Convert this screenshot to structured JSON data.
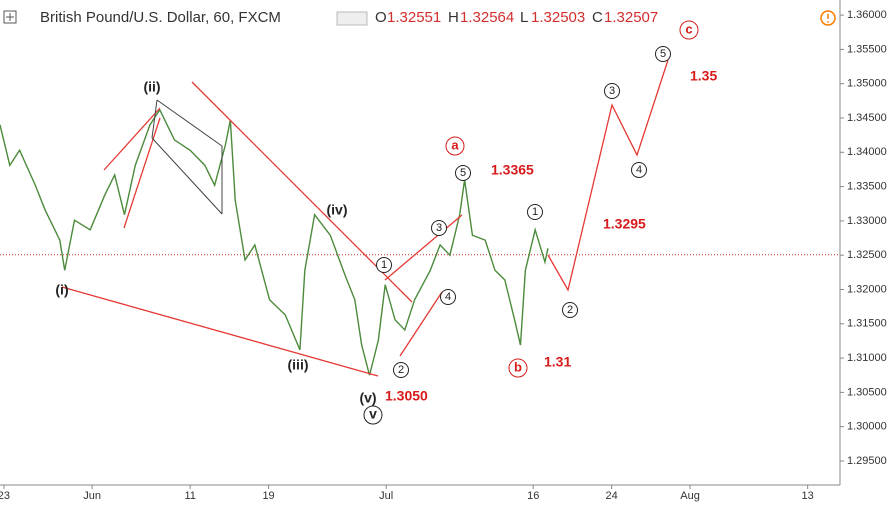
{
  "header": {
    "symbol": "British Pound/U.S. Dollar, 60, FXCM",
    "o_label": "O",
    "open": "1.32551",
    "h_label": "H",
    "high": "1.32564",
    "l_label": "L",
    "low": "1.32503",
    "c_label": "C",
    "close": "1.32507"
  },
  "chart_data": {
    "type": "line",
    "color": "#4b8b3b",
    "price_line_color": "#d32f2f",
    "current_price": 1.32507,
    "x": [
      22.6,
      23.6,
      24.6,
      26.2,
      27.2,
      28.7,
      29.2,
      30.2,
      31.8,
      33.3,
      34.3,
      35.3,
      36.4,
      37.9,
      38.9,
      40.4,
      42.0,
      43.5,
      44.5,
      45.6,
      46.1,
      46.6,
      47.6,
      48.6,
      50.1,
      51.7,
      53.2,
      53.7,
      54.7,
      56.3,
      57.8,
      58.8,
      59.5,
      60.3,
      61.2,
      61.9,
      62.9,
      63.9,
      64.9,
      66.5,
      67.5,
      68.5,
      69.5,
      70.0,
      70.8,
      72.1,
      73.1,
      74.1,
      75.1,
      75.7,
      76.2,
      77.2,
      78.2,
      78.5
    ],
    "values": [
      1.344,
      1.3381,
      1.3403,
      1.3352,
      1.3316,
      1.3272,
      1.3228,
      1.3301,
      1.3287,
      1.3338,
      1.3367,
      1.3309,
      1.3381,
      1.344,
      1.3462,
      1.3418,
      1.3403,
      1.3381,
      1.3352,
      1.3411,
      1.3447,
      1.333,
      1.3243,
      1.3265,
      1.3185,
      1.3163,
      1.3112,
      1.3228,
      1.3309,
      1.3279,
      1.3221,
      1.3185,
      1.3119,
      1.3075,
      1.3126,
      1.3207,
      1.3156,
      1.3141,
      1.3185,
      1.3228,
      1.3265,
      1.325,
      1.3309,
      1.336,
      1.3279,
      1.3272,
      1.3228,
      1.3214,
      1.3156,
      1.3119,
      1.3228,
      1.3287,
      1.324,
      1.326
    ],
    "xlim": [
      22.6,
      108.3
    ],
    "xticks": [
      {
        "value": 23,
        "label": "23"
      },
      {
        "value": 32,
        "label": "Jun"
      },
      {
        "value": 42,
        "label": "11"
      },
      {
        "value": 50,
        "label": "19"
      },
      {
        "value": 62,
        "label": "Jul"
      },
      {
        "value": 77,
        "label": "16"
      },
      {
        "value": 85,
        "label": "24"
      },
      {
        "value": 93,
        "label": "Aug"
      },
      {
        "value": 105,
        "label": "13"
      }
    ],
    "ylim": [
      1.2915,
      1.3622
    ],
    "yticks": [
      {
        "value": 1.36,
        "label": "1.36000"
      },
      {
        "value": 1.355,
        "label": "1.35500"
      },
      {
        "value": 1.35,
        "label": "1.35000"
      },
      {
        "value": 1.345,
        "label": "1.34500"
      },
      {
        "value": 1.34,
        "label": "1.34000"
      },
      {
        "value": 1.335,
        "label": "1.33500"
      },
      {
        "value": 1.33,
        "label": "1.33000"
      },
      {
        "value": 1.325,
        "label": "1.32500"
      },
      {
        "value": 1.32,
        "label": "1.32000"
      },
      {
        "value": 1.315,
        "label": "1.31500"
      },
      {
        "value": 1.31,
        "label": "1.31000"
      },
      {
        "value": 1.305,
        "label": "1.30500"
      },
      {
        "value": 1.3,
        "label": "1.30000"
      },
      {
        "value": 1.295,
        "label": "1.29500"
      }
    ],
    "annotations": [
      "(i)",
      "(ii)",
      "(iii)",
      "(iv)",
      "(v)",
      "v",
      "1.3050",
      "a",
      "1.3365",
      "1.3295",
      "b",
      "1.31",
      "c",
      "1.35",
      "1",
      "2",
      "3",
      "4",
      "5",
      "1",
      "2",
      "3",
      "4",
      "5"
    ]
  }
}
